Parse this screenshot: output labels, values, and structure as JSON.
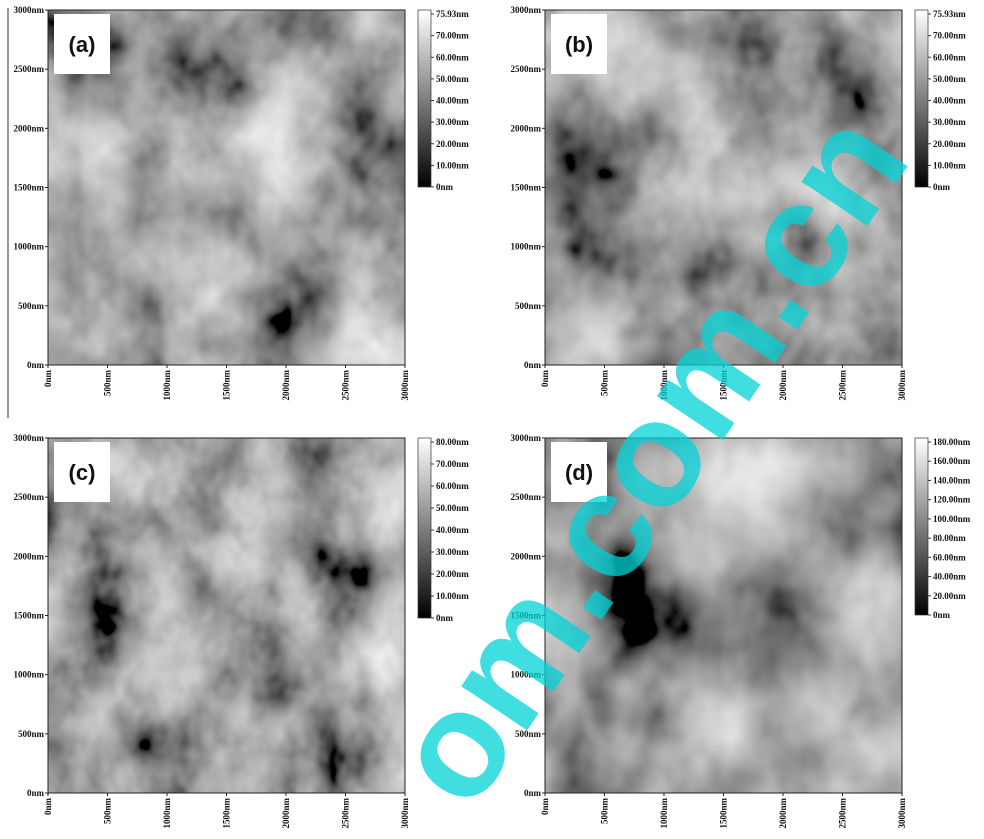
{
  "axis_ticks": [
    "0nm",
    "500nm",
    "1000nm",
    "1500nm",
    "2000nm",
    "2500nm",
    "3000nm"
  ],
  "panels": [
    {
      "label": "(a)",
      "colorbar": [
        "75.93nm",
        "70.00nm",
        "60.00nm",
        "50.00nm",
        "40.00nm",
        "30.00nm",
        "20.00nm",
        "10.00nm",
        "0nm"
      ]
    },
    {
      "label": "(b)",
      "colorbar": [
        "75.93nm",
        "70.00nm",
        "60.00nm",
        "50.00nm",
        "40.00nm",
        "30.00nm",
        "20.00nm",
        "10.00nm",
        "0nm"
      ]
    },
    {
      "label": "(c)",
      "colorbar": [
        "80.00nm",
        "70.00nm",
        "60.00nm",
        "50.00nm",
        "40.00nm",
        "30.00nm",
        "20.00nm",
        "10.00nm",
        "0nm"
      ]
    },
    {
      "label": "(d)",
      "colorbar": [
        "180.00nm",
        "160.00nm",
        "140.00nm",
        "120.00nm",
        "100.00nm",
        "80.00nm",
        "60.00nm",
        "40.00nm",
        "20.00nm",
        "0nm"
      ]
    }
  ],
  "watermark": "om.com.cn"
}
